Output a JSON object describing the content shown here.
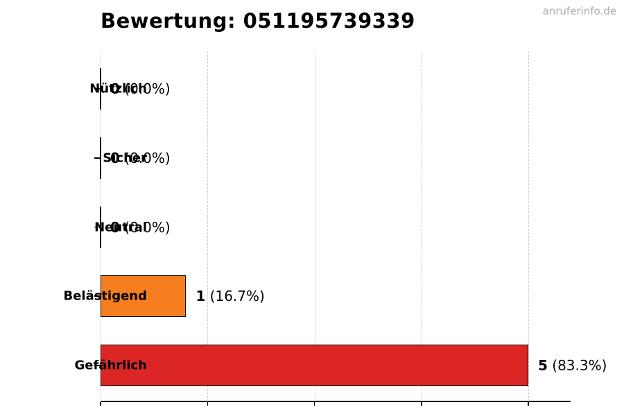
{
  "header": {
    "watermark": "anruferinfo.de"
  },
  "chart_data": {
    "type": "bar",
    "orientation": "horizontal",
    "title": "Bewertung: 051195739339",
    "categories": [
      "Nützlich",
      "Sicher",
      "Neutral",
      "Belästigend",
      "Gefährlich"
    ],
    "values": [
      0,
      0,
      0,
      1,
      5
    ],
    "items": [
      {
        "label": "Nützlich",
        "value": 0,
        "value_text": "0",
        "pct_text": "(0.0%)",
        "color": null
      },
      {
        "label": "Sicher",
        "value": 0,
        "value_text": "0",
        "pct_text": "(0.0%)",
        "color": null
      },
      {
        "label": "Neutral",
        "value": 0,
        "value_text": "0",
        "pct_text": "(0.0%)",
        "color": null
      },
      {
        "label": "Belästigend",
        "value": 1,
        "value_text": "1",
        "pct_text": "(16.7%)",
        "color": "#f57e20"
      },
      {
        "label": "Gefährlich",
        "value": 5,
        "value_text": "5",
        "pct_text": "(83.3%)",
        "color": "#dc2626"
      }
    ],
    "xlabel": "",
    "ylabel": "",
    "xlim": [
      0,
      5.5
    ],
    "grid": true,
    "grid_style": "dashed",
    "grid_values": [
      0,
      1.25,
      2.5,
      3.75,
      5
    ],
    "x_tick_labels": [],
    "legend": false,
    "colors": {
      "bar_orange": "#f57e20",
      "bar_red": "#dc2626",
      "bar_outline": "#0d0d0d",
      "gridline": "#cbcbcb",
      "axis": "#000000",
      "watermark_text": "#adadad",
      "background": "#ffffff"
    }
  }
}
